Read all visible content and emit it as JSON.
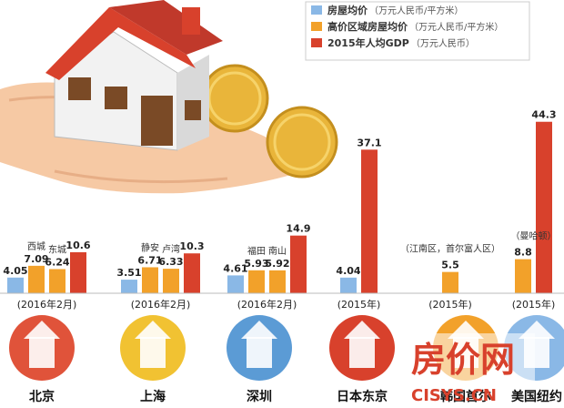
{
  "chart_data": {
    "type": "bar",
    "series": [
      {
        "name": "房屋均价",
        "unit": "（万元人民币/平方米）",
        "color": "#8ab8e6"
      },
      {
        "name": "高价区域房屋均价",
        "unit": "（万元人民币/平方米）",
        "color": "#f2a12a"
      },
      {
        "name": "2015年人均GDP",
        "unit": "（万元人民币）",
        "color": "#d8412c"
      }
    ],
    "groups": [
      {
        "city": "北京",
        "period": "(2016年2月)",
        "bars": [
          {
            "series": 0,
            "value": 4.05,
            "label": "4.05",
            "area": ""
          },
          {
            "series": 1,
            "value": 7.09,
            "label": "7.09",
            "area": "西城"
          },
          {
            "series": 1,
            "value": 6.24,
            "label": "6.24",
            "area": "东城"
          },
          {
            "series": 2,
            "value": 10.6,
            "label": "10.6",
            "area": ""
          }
        ]
      },
      {
        "city": "上海",
        "period": "(2016年2月)",
        "bars": [
          {
            "series": 0,
            "value": 3.51,
            "label": "3.51",
            "area": ""
          },
          {
            "series": 1,
            "value": 6.71,
            "label": "6.71",
            "area": "静安"
          },
          {
            "series": 1,
            "value": 6.33,
            "label": "6.33",
            "area": "卢湾"
          },
          {
            "series": 2,
            "value": 10.3,
            "label": "10.3",
            "area": ""
          }
        ]
      },
      {
        "city": "深圳",
        "period": "(2016年2月)",
        "bars": [
          {
            "series": 0,
            "value": 4.61,
            "label": "4.61",
            "area": ""
          },
          {
            "series": 1,
            "value": 5.93,
            "label": "5.93",
            "area": "福田"
          },
          {
            "series": 1,
            "value": 5.92,
            "label": "5.92",
            "area": "南山"
          },
          {
            "series": 2,
            "value": 14.9,
            "label": "14.9",
            "area": ""
          }
        ]
      },
      {
        "city": "日本东京",
        "period": "(2015年)",
        "bars": [
          {
            "series": 0,
            "value": 4.04,
            "label": "4.04",
            "area": ""
          },
          {
            "series": 2,
            "value": 37.1,
            "label": "37.1",
            "area": ""
          }
        ]
      },
      {
        "city": "韩国首尔",
        "period": "(2015年)",
        "note": "（江南区，首尔富人区）",
        "bars": [
          {
            "series": 1,
            "value": 5.5,
            "label": "5.5",
            "area": ""
          }
        ]
      },
      {
        "city": "美国纽约",
        "period": "(2015年)",
        "note": "（曼哈顿）",
        "bars": [
          {
            "series": 1,
            "value": 8.8,
            "label": "8.8",
            "area": ""
          },
          {
            "series": 2,
            "value": 44.3,
            "label": "44.3",
            "area": ""
          }
        ]
      }
    ]
  },
  "watermark": {
    "text": "房价网",
    "url": "CISYS.CN"
  }
}
